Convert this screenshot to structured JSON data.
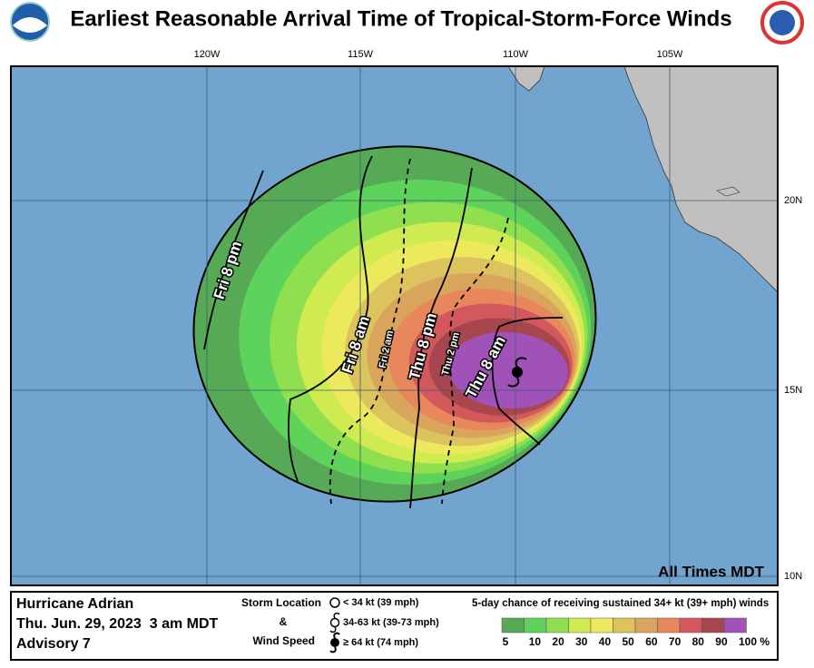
{
  "header": {
    "title": "Earliest Reasonable Arrival Time of Tropical-Storm-Force Winds"
  },
  "map": {
    "longitude_labels": [
      "120W",
      "115W",
      "110W",
      "105W"
    ],
    "latitude_labels": [
      "20N",
      "15N",
      "10N"
    ],
    "time_note": "All Times MDT",
    "contour_labels": [
      "Fri 8 pm",
      "Fri 8 am",
      "Fri 2 am",
      "Thu 8 pm",
      "Thu 2 pm",
      "Thu 8 am"
    ]
  },
  "info": {
    "storm": "Hurricane Adrian",
    "date": "Thu. Jun. 29, 2023  3 am MDT",
    "advisory": "Advisory 7"
  },
  "key": {
    "title_lines": [
      "Storm Location",
      "&",
      "Wind Speed"
    ],
    "items": [
      "< 34 kt (39 mph)",
      "34-63 kt (39-73 mph)",
      "≥ 64 kt (74 mph)"
    ]
  },
  "probability_legend": {
    "title": "5-day chance of receiving sustained 34+ kt (39+ mph) winds",
    "labels": [
      "5",
      "10",
      "20",
      "30",
      "40",
      "50",
      "60",
      "70",
      "80",
      "90",
      "100 %"
    ],
    "colors": [
      "#56a955",
      "#5ed35c",
      "#8fdf4f",
      "#cfeb4f",
      "#ecea5c",
      "#dcc35e",
      "#d9a45c",
      "#e8875c",
      "#d2585c",
      "#a8464f",
      "#a052b8"
    ]
  }
}
